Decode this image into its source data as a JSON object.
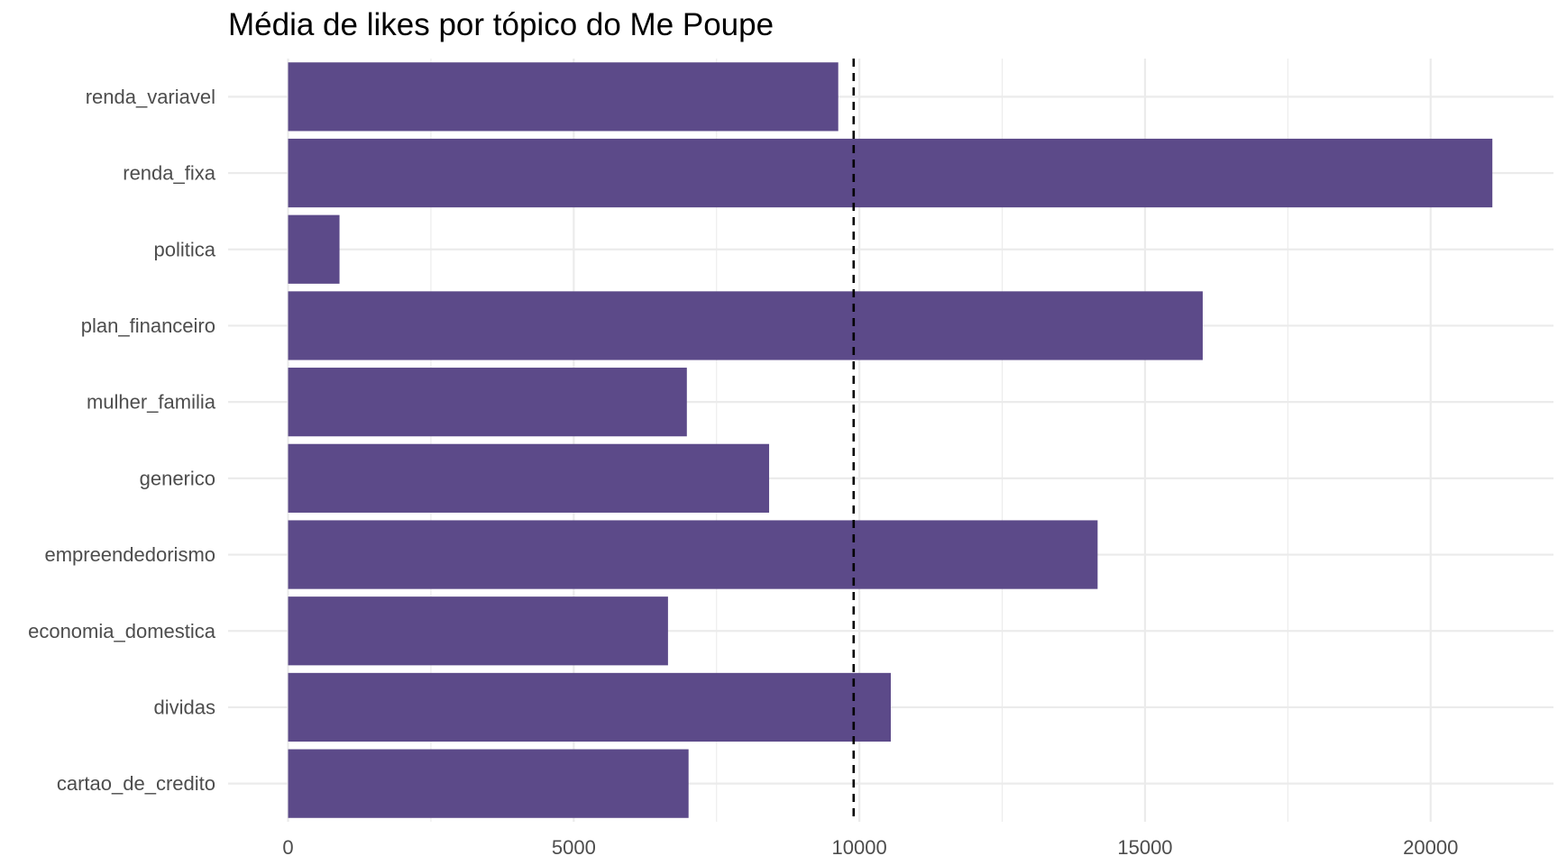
{
  "chart_data": {
    "type": "bar",
    "orientation": "horizontal",
    "title": "Média de likes por tópico do Me Poupe",
    "xlabel": "",
    "ylabel": "",
    "categories": [
      "renda_variavel",
      "renda_fixa",
      "politica",
      "plan_financeiro",
      "mulher_familia",
      "generico",
      "empreendedorismo",
      "economia_domestica",
      "dividas",
      "cartao_de_credito"
    ],
    "values": [
      9630,
      21080,
      900,
      16010,
      6980,
      8420,
      14170,
      6650,
      10550,
      7010
    ],
    "xlim": [
      -1050,
      22150
    ],
    "xticks": [
      0,
      5000,
      10000,
      15000,
      20000
    ],
    "xtick_labels": [
      "0",
      "5000",
      "10000",
      "15000",
      "20000"
    ],
    "reference_line": {
      "value": 9900,
      "style": "dashed"
    },
    "bar_color": "#5c4a89",
    "grid": true,
    "legend": "none"
  }
}
